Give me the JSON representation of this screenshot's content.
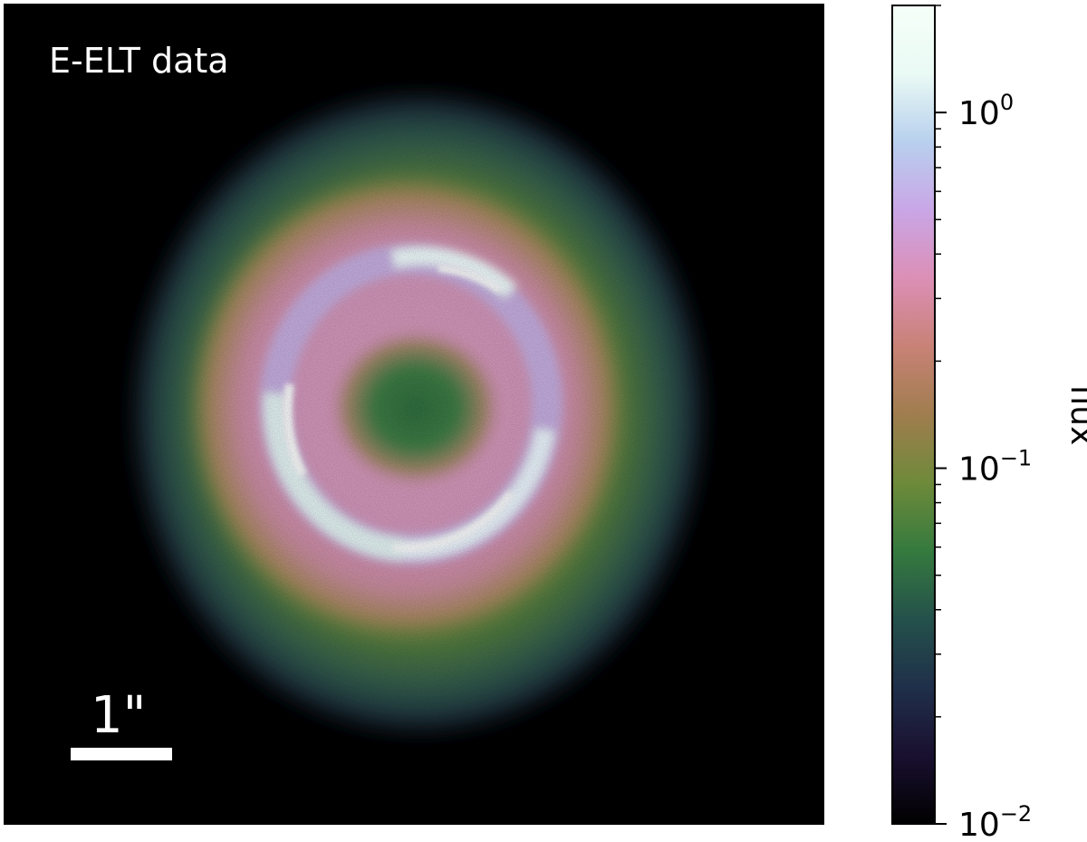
{
  "panel": {
    "title": "E-ELT data"
  },
  "scale_bar": {
    "label": "1\""
  },
  "colorbar": {
    "label": "flux",
    "scale": "log",
    "range": [
      0.01,
      2.0
    ],
    "ticks": [
      {
        "value": 1.0,
        "base": "10",
        "exp": "0"
      },
      {
        "value": 0.1,
        "base": "10",
        "exp": "−1"
      },
      {
        "value": 0.01,
        "base": "10",
        "exp": "−2"
      }
    ],
    "colormap": [
      "#000000",
      "#1a1030",
      "#1f2f4a",
      "#24514b",
      "#357a3e",
      "#6e8a3a",
      "#a07d4e",
      "#c88276",
      "#dc8fb6",
      "#c9a6e6",
      "#b8d0ee",
      "#eafaf4",
      "#f5fff8"
    ]
  },
  "lens_image": {
    "colors": {
      "background": "#000000",
      "halo_outer": "#2a4a5a",
      "halo_green": "#5e8a3c",
      "pink": "#d993b8",
      "arc": "#f2ffff",
      "core": "#3c7a44"
    }
  }
}
